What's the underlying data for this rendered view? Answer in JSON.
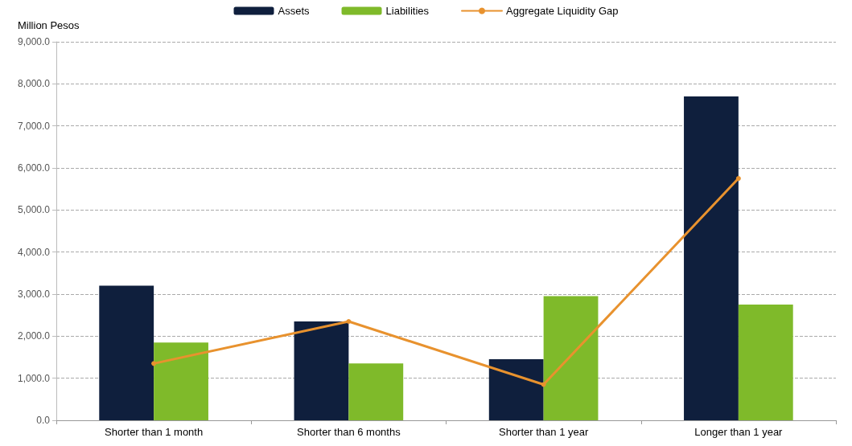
{
  "chart_data": {
    "type": "bar",
    "ylabel": "Million Pesos",
    "categories": [
      "Shorter than 1 month",
      "Shorter than 6 months",
      "Shorter than 1 year",
      "Longer than 1 year"
    ],
    "series": [
      {
        "name": "Assets",
        "color": "#0f1f3d",
        "values": [
          3200,
          2350,
          1450,
          7700
        ]
      },
      {
        "name": "Liabilities",
        "color": "#7fba2a",
        "values": [
          1850,
          1350,
          2950,
          2750
        ]
      },
      {
        "name": "Aggregate Liquidity Gap",
        "type": "line",
        "color": "#e8922e",
        "values": [
          1350,
          2350,
          850,
          5750
        ]
      }
    ],
    "ylim": [
      0,
      9000
    ],
    "yticks": [
      {
        "value": 0,
        "label": "0.0"
      },
      {
        "value": 1000,
        "label": "1,000.0"
      },
      {
        "value": 2000,
        "label": "2,000.0"
      },
      {
        "value": 3000,
        "label": "3,000.0"
      },
      {
        "value": 4000,
        "label": "4,000.0"
      },
      {
        "value": 5000,
        "label": "5,000.0"
      },
      {
        "value": 6000,
        "label": "6,000.0"
      },
      {
        "value": 7000,
        "label": "7,000.0"
      },
      {
        "value": 8000,
        "label": "8,000.0"
      },
      {
        "value": 9000,
        "label": "9,000.0"
      }
    ],
    "grid": "y",
    "legend": "top",
    "marker": "circle",
    "line_style": "solid"
  }
}
